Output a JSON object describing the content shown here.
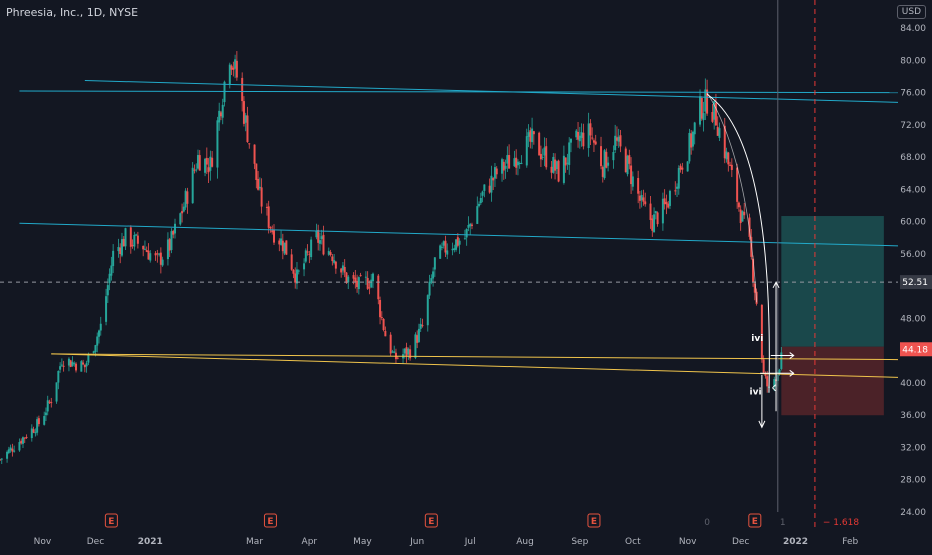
{
  "header": {
    "symbol_title": "Phreesia, Inc., 1D, NYSE",
    "currency": "USD"
  },
  "colors": {
    "background": "#131722",
    "up_candle": "#26a69a",
    "down_candle": "#ef5350",
    "channel_lines": "#22a9c9",
    "support_lines": "#f0c44c",
    "axis_text": "#b2b5be",
    "target_zone": "#1e5a59",
    "stop_zone": "#5a262b",
    "vertical_marker": "#e53935",
    "price_tag_current": "#ef5350",
    "price_tag_level": "#363a45"
  },
  "chart_data": {
    "type": "candlestick",
    "ylim": [
      24,
      86
    ],
    "y_ticks": [
      "84.00",
      "80.00",
      "76.00",
      "72.00",
      "68.00",
      "64.00",
      "60.00",
      "56.00",
      "52.00",
      "48.00",
      "44.00",
      "40.00",
      "36.00",
      "32.00",
      "28.00",
      "24.00"
    ],
    "x_ticks": [
      "Nov",
      "Dec",
      "2021",
      "Mar",
      "Apr",
      "May",
      "Jun",
      "Jul",
      "Aug",
      "Sep",
      "Oct",
      "Nov",
      "Dec",
      "2022",
      "Feb"
    ],
    "x_tick_dates": [
      "2020-11-01",
      "2020-12-01",
      "2021-01-01",
      "2021-03-01",
      "2021-04-01",
      "2021-05-01",
      "2021-06-01",
      "2021-07-01",
      "2021-08-01",
      "2021-09-01",
      "2021-10-01",
      "2021-11-01",
      "2021-12-01",
      "2022-01-01",
      "2022-02-01"
    ],
    "x_range": [
      "2020-10-08",
      "2022-02-28"
    ],
    "price_path": [
      [
        "2020-10-08",
        30.5
      ],
      [
        "2020-10-20",
        33
      ],
      [
        "2020-10-30",
        35
      ],
      [
        "2020-11-06",
        38
      ],
      [
        "2020-11-12",
        43
      ],
      [
        "2020-11-25",
        42
      ],
      [
        "2020-12-04",
        47
      ],
      [
        "2020-12-11",
        56
      ],
      [
        "2020-12-18",
        58
      ],
      [
        "2020-12-28",
        57
      ],
      [
        "2021-01-05",
        55
      ],
      [
        "2021-01-12",
        57
      ],
      [
        "2021-01-20",
        62
      ],
      [
        "2021-01-28",
        68
      ],
      [
        "2021-02-04",
        67
      ],
      [
        "2021-02-11",
        76
      ],
      [
        "2021-02-15",
        81
      ],
      [
        "2021-02-19",
        78
      ],
      [
        "2021-02-26",
        70
      ],
      [
        "2021-03-04",
        63
      ],
      [
        "2021-03-11",
        59
      ],
      [
        "2021-03-18",
        57
      ],
      [
        "2021-03-25",
        53
      ],
      [
        "2021-04-05",
        58
      ],
      [
        "2021-04-14",
        56
      ],
      [
        "2021-04-22",
        53
      ],
      [
        "2021-04-29",
        52
      ],
      [
        "2021-05-07",
        53
      ],
      [
        "2021-05-14",
        46
      ],
      [
        "2021-05-19",
        43
      ],
      [
        "2021-05-28",
        44
      ],
      [
        "2021-06-04",
        47
      ],
      [
        "2021-06-11",
        55
      ],
      [
        "2021-06-18",
        57
      ],
      [
        "2021-06-28",
        58
      ],
      [
        "2021-07-07",
        63
      ],
      [
        "2021-07-16",
        66
      ],
      [
        "2021-07-26",
        68
      ],
      [
        "2021-08-05",
        70
      ],
      [
        "2021-08-13",
        68
      ],
      [
        "2021-08-20",
        66
      ],
      [
        "2021-08-30",
        70
      ],
      [
        "2021-09-07",
        71
      ],
      [
        "2021-09-14",
        67
      ],
      [
        "2021-09-21",
        70
      ],
      [
        "2021-09-28",
        67
      ],
      [
        "2021-10-06",
        62
      ],
      [
        "2021-10-12",
        60
      ],
      [
        "2021-10-20",
        62
      ],
      [
        "2021-10-28",
        67
      ],
      [
        "2021-11-03",
        70
      ],
      [
        "2021-11-08",
        74
      ],
      [
        "2021-11-12",
        75
      ],
      [
        "2021-11-17",
        73
      ],
      [
        "2021-11-23",
        68
      ],
      [
        "2021-11-30",
        62
      ],
      [
        "2021-12-06",
        57
      ],
      [
        "2021-12-10",
        50
      ],
      [
        "2021-12-14",
        41
      ],
      [
        "2021-12-17",
        39
      ],
      [
        "2021-12-21",
        41
      ],
      [
        "2021-12-24",
        43
      ]
    ],
    "lines": [
      {
        "kind": "channel",
        "from": [
          "2020-11-25",
          77.5
        ],
        "to": [
          "2022-02-28",
          74.8
        ]
      },
      {
        "kind": "channel",
        "from": [
          "2020-10-19",
          76.2
        ],
        "to": [
          "2022-02-28",
          76.0
        ]
      },
      {
        "kind": "channel",
        "from": [
          "2020-10-19",
          59.8
        ],
        "to": [
          "2022-02-28",
          57.0
        ]
      },
      {
        "kind": "support",
        "from": [
          "2020-11-06",
          43.6
        ],
        "to": [
          "2022-02-28",
          40.7
        ]
      },
      {
        "kind": "support",
        "from": [
          "2020-11-06",
          43.6
        ],
        "to": [
          "2022-02-28",
          42.9
        ]
      }
    ],
    "horizontal_levels": [
      52.51
    ],
    "price_tags": [
      "52.51",
      "44.18"
    ],
    "current_price": 44.18,
    "position": {
      "start": "2021-12-24",
      "end": "2022-02-20",
      "entry": 44.5,
      "target": 60.7,
      "stop": 36.0
    },
    "vertical_marker_date": "2022-01-12",
    "vertical_cursor_date": "2021-12-22",
    "earnings_dates": [
      "2020-12-10",
      "2021-03-10",
      "2021-06-09",
      "2021-09-09",
      "2021-12-09"
    ],
    "earnings_badge": "E",
    "annotations": {
      "fib_label": "1.618",
      "time_marker_0": "0",
      "time_marker_1": "1",
      "wave_label_upper": "ivi",
      "wave_label_lower": "ivi"
    }
  }
}
